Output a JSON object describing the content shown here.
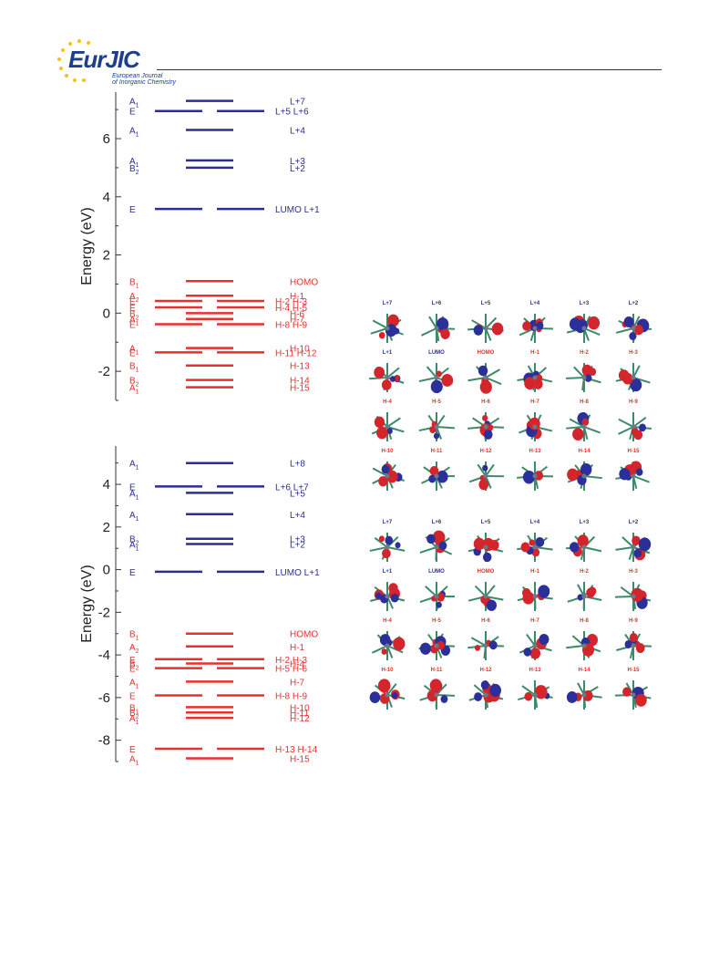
{
  "header": {
    "logo_text": "EurJIC",
    "logo_subtitle_line1": "European Journal",
    "logo_subtitle_line2": "of Inorganic Chemistry"
  },
  "colors": {
    "occupied": "#e8312f",
    "virtual": "#2b2f92",
    "axis": "#333333",
    "lobe_red": "#d3252b",
    "lobe_blue": "#2a2f9a",
    "bond_green": "#3d8a6a"
  },
  "chart_data": [
    {
      "type": "energy-level-diagram",
      "ylabel": "Energy (eV)",
      "ylim": [
        -3.0,
        7.6
      ],
      "yticks": [
        -2,
        0,
        2,
        4,
        6
      ],
      "levels": [
        {
          "e": 7.3,
          "kind": "A",
          "sym": "A",
          "sub": "1",
          "label": "L+7",
          "occ": false
        },
        {
          "e": 6.95,
          "kind": "E",
          "sym": "E",
          "sub": "",
          "label": "L+5   L+6",
          "occ": false
        },
        {
          "e": 6.3,
          "kind": "A",
          "sym": "A",
          "sub": "1",
          "label": "L+4",
          "occ": false
        },
        {
          "e": 5.25,
          "kind": "A",
          "sym": "A",
          "sub": "1",
          "label": "L+3",
          "occ": false
        },
        {
          "e": 5.0,
          "kind": "A",
          "sym": "B",
          "sub": "2",
          "label": "L+2",
          "occ": false
        },
        {
          "e": 3.58,
          "kind": "E",
          "sym": "E",
          "sub": "",
          "label": "LUMO   L+1",
          "occ": false
        },
        {
          "e": 1.1,
          "kind": "A",
          "sym": "B",
          "sub": "1",
          "label": "HOMO",
          "occ": true
        },
        {
          "e": 0.6,
          "kind": "A",
          "sym": "A",
          "sub": "2",
          "label": "H-1",
          "occ": true
        },
        {
          "e": 0.42,
          "kind": "E",
          "sym": "E",
          "sub": "",
          "label": "H-2   H-3",
          "occ": true
        },
        {
          "e": 0.2,
          "kind": "E",
          "sym": "E",
          "sub": "",
          "label": "H-4   H-5",
          "occ": true
        },
        {
          "e": 0.0,
          "kind": "A",
          "sym": "B",
          "sub": "2",
          "label": "H-6",
          "occ": true
        },
        {
          "e": -0.2,
          "kind": "A",
          "sym": "A",
          "sub": "1",
          "label": "H-7",
          "occ": true
        },
        {
          "e": -0.38,
          "kind": "E",
          "sym": "E",
          "sub": "",
          "label": "H-8   H-9",
          "occ": true
        },
        {
          "e": -1.2,
          "kind": "A",
          "sym": "A",
          "sub": "1",
          "label": "H-10",
          "occ": true
        },
        {
          "e": -1.35,
          "kind": "E",
          "sym": "E",
          "sub": "",
          "label": "H-11   H-12",
          "occ": true
        },
        {
          "e": -1.8,
          "kind": "A",
          "sym": "B",
          "sub": "1",
          "label": "H-13",
          "occ": true
        },
        {
          "e": -2.3,
          "kind": "A",
          "sym": "B",
          "sub": "2",
          "label": "H-14",
          "occ": true
        },
        {
          "e": -2.55,
          "kind": "A",
          "sym": "A",
          "sub": "1",
          "label": "H-15",
          "occ": true
        }
      ]
    },
    {
      "type": "energy-level-diagram",
      "ylabel": "Energy (eV)",
      "ylim": [
        -9.0,
        5.8
      ],
      "yticks": [
        -8,
        -6,
        -4,
        -2,
        0,
        2,
        4
      ],
      "levels": [
        {
          "e": 5.0,
          "kind": "A",
          "sym": "A",
          "sub": "1",
          "label": "L+8",
          "occ": false
        },
        {
          "e": 3.9,
          "kind": "E",
          "sym": "E",
          "sub": "",
          "label": "L+6   L+7",
          "occ": false
        },
        {
          "e": 3.6,
          "kind": "A",
          "sym": "A",
          "sub": "1",
          "label": "L+5",
          "occ": false
        },
        {
          "e": 2.6,
          "kind": "A",
          "sym": "A",
          "sub": "1",
          "label": "L+4",
          "occ": false
        },
        {
          "e": 1.45,
          "kind": "A",
          "sym": "B",
          "sub": "2",
          "label": "L+3",
          "occ": false
        },
        {
          "e": 1.2,
          "kind": "A",
          "sym": "A",
          "sub": "1",
          "label": "L+2",
          "occ": false
        },
        {
          "e": -0.1,
          "kind": "E",
          "sym": "E",
          "sub": "",
          "label": "LUMO   L+1",
          "occ": false
        },
        {
          "e": -3.0,
          "kind": "A",
          "sym": "B",
          "sub": "1",
          "label": "HOMO",
          "occ": true
        },
        {
          "e": -3.6,
          "kind": "A",
          "sym": "A",
          "sub": "2",
          "label": "H-1",
          "occ": true
        },
        {
          "e": -4.2,
          "kind": "E",
          "sym": "E",
          "sub": "",
          "label": "H-2   H-3",
          "occ": true
        },
        {
          "e": -4.4,
          "kind": "A",
          "sym": "B",
          "sub": "2",
          "label": "H-4",
          "occ": true
        },
        {
          "e": -4.62,
          "kind": "E",
          "sym": "E",
          "sub": "",
          "label": "H-5   H-6",
          "occ": true
        },
        {
          "e": -5.25,
          "kind": "A",
          "sym": "A",
          "sub": "1",
          "label": "H-7",
          "occ": true
        },
        {
          "e": -5.9,
          "kind": "E",
          "sym": "E",
          "sub": "",
          "label": "H-8   H-9",
          "occ": true
        },
        {
          "e": -6.45,
          "kind": "A",
          "sym": "B",
          "sub": "1",
          "label": "H-10",
          "occ": true
        },
        {
          "e": -6.7,
          "kind": "A",
          "sym": "B",
          "sub": "2",
          "label": "H-11",
          "occ": true
        },
        {
          "e": -6.95,
          "kind": "A",
          "sym": "A",
          "sub": "1",
          "label": "H-12",
          "occ": true
        },
        {
          "e": -8.4,
          "kind": "E",
          "sym": "E",
          "sub": "",
          "label": "H-13   H-14",
          "occ": true
        },
        {
          "e": -8.85,
          "kind": "A",
          "sym": "A",
          "sub": "1",
          "label": "H-15",
          "occ": true
        }
      ]
    }
  ],
  "orbital_panels": [
    {
      "rows": [
        [
          "L+7",
          "L+6",
          "L+5",
          "L+4",
          "L+3",
          "L+2"
        ],
        [
          "L+1",
          "LUMO",
          "HOMO",
          "H-1",
          "H-2",
          "H-3"
        ],
        [
          "H-4",
          "H-5",
          "H-6",
          "H-7",
          "H-8",
          "H-9"
        ],
        [
          "H-10",
          "H-11",
          "H-12",
          "H-13",
          "H-14",
          "H-15"
        ]
      ]
    },
    {
      "rows": [
        [
          "L+7",
          "L+6",
          "L+5",
          "L+4",
          "L+3",
          "L+2"
        ],
        [
          "L+1",
          "LUMO",
          "HOMO",
          "H-1",
          "H-2",
          "H-3"
        ],
        [
          "H-4",
          "H-5",
          "H-6",
          "H-7",
          "H-8",
          "H-9"
        ],
        [
          "H-10",
          "H-11",
          "H-12",
          "H-13",
          "H-14",
          "H-15"
        ]
      ]
    }
  ]
}
